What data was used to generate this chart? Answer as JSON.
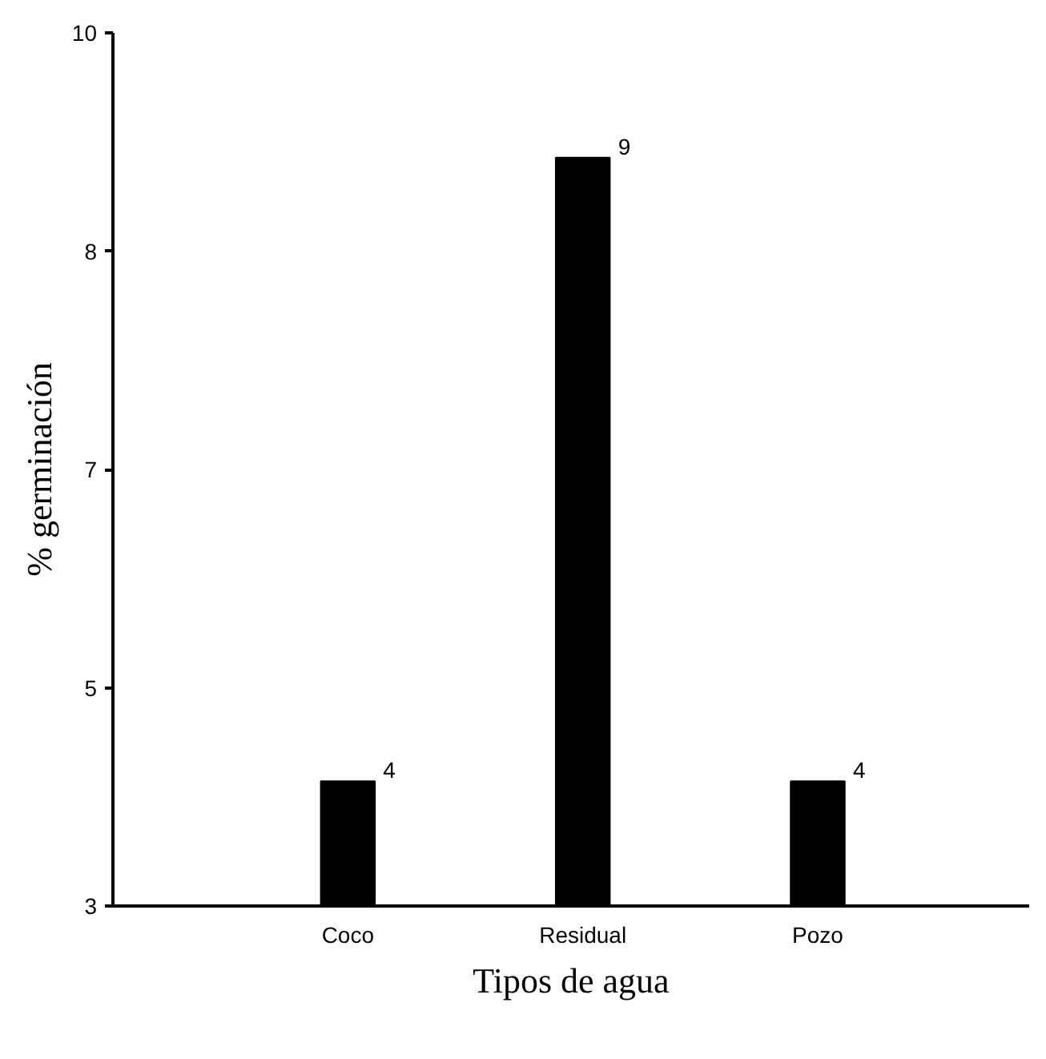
{
  "chart_data": {
    "type": "bar",
    "xlabel": "Tipos de agua",
    "ylabel": "% germinación",
    "categories": [
      "Coco",
      "Residual",
      "Pozo"
    ],
    "values": [
      4,
      9,
      4
    ],
    "color": "#000000",
    "ylim": [
      3,
      10
    ],
    "yticks": [
      3,
      {
        "value": 4.75,
        "label": "5"
      },
      {
        "value": 6.5,
        "label": "7"
      },
      {
        "value": 8.25,
        "label": "8"
      },
      10
    ],
    "data_labels": true,
    "grid": false
  }
}
